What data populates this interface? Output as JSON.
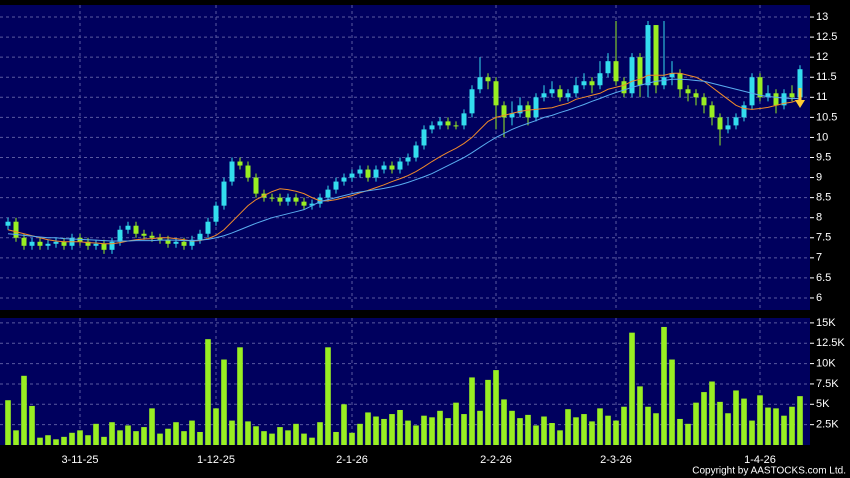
{
  "chart_data": [
    {
      "type": "candlestick",
      "categories": [
        null,
        null,
        null,
        null,
        null,
        null,
        null,
        null,
        null,
        "3-11-25",
        null,
        null,
        null,
        null,
        null,
        null,
        null,
        null,
        null,
        null,
        null,
        null,
        null,
        null,
        null,
        null,
        "1-12-25",
        null,
        null,
        null,
        null,
        null,
        null,
        null,
        null,
        null,
        null,
        null,
        null,
        null,
        null,
        null,
        null,
        "2-1-26",
        null,
        null,
        null,
        null,
        null,
        null,
        null,
        null,
        null,
        null,
        null,
        null,
        null,
        null,
        null,
        null,
        null,
        "2-2-26",
        null,
        null,
        null,
        null,
        null,
        null,
        null,
        null,
        null,
        null,
        null,
        null,
        null,
        null,
        "2-3-26",
        null,
        null,
        null,
        null,
        null,
        null,
        null,
        null,
        null,
        null,
        null,
        null,
        null,
        null,
        null,
        null,
        null,
        "1-4-26",
        null,
        null,
        null,
        null,
        null
      ],
      "open": [
        7.8,
        7.9,
        7.5,
        7.3,
        7.4,
        7.3,
        7.35,
        7.4,
        7.3,
        7.5,
        7.4,
        7.3,
        7.35,
        7.2,
        7.4,
        7.7,
        7.8,
        7.6,
        7.55,
        7.5,
        7.45,
        7.35,
        7.4,
        7.3,
        7.45,
        7.6,
        7.9,
        8.3,
        8.9,
        9.4,
        9.3,
        9.0,
        8.6,
        8.5,
        8.5,
        8.4,
        8.5,
        8.4,
        8.3,
        8.35,
        8.5,
        8.7,
        8.9,
        9.0,
        9.1,
        9.2,
        9.0,
        9.2,
        9.3,
        9.2,
        9.4,
        9.5,
        9.8,
        10.2,
        10.3,
        10.4,
        10.3,
        10.3,
        10.6,
        11.2,
        11.5,
        11.4,
        10.8,
        10.5,
        10.6,
        10.8,
        10.5,
        11.0,
        11.1,
        11.2,
        11.0,
        11.1,
        11.3,
        11.4,
        11.3,
        11.6,
        11.9,
        11.4,
        11.1,
        12.0,
        11.3,
        12.8,
        11.3,
        11.5,
        11.6,
        11.2,
        11.1,
        11.0,
        10.8,
        10.5,
        10.2,
        10.3,
        10.5,
        10.8,
        11.5,
        11.0,
        11.1,
        10.8,
        11.1,
        11.0
      ],
      "high": [
        8.0,
        8.0,
        7.6,
        7.5,
        7.5,
        7.45,
        7.5,
        7.5,
        7.6,
        7.6,
        7.5,
        7.45,
        7.45,
        7.5,
        7.8,
        7.9,
        7.9,
        7.7,
        7.65,
        7.6,
        7.55,
        7.5,
        7.5,
        7.55,
        7.7,
        8.0,
        8.4,
        9.0,
        9.5,
        9.5,
        9.4,
        9.1,
        8.7,
        8.6,
        8.6,
        8.6,
        8.6,
        8.5,
        8.45,
        8.6,
        8.8,
        9.0,
        9.1,
        9.2,
        9.3,
        9.3,
        9.3,
        9.4,
        9.4,
        9.5,
        9.6,
        9.9,
        10.3,
        10.4,
        10.5,
        10.5,
        10.4,
        10.7,
        11.3,
        12.0,
        11.6,
        11.5,
        10.9,
        10.9,
        11.0,
        10.9,
        11.1,
        11.3,
        11.4,
        11.3,
        11.2,
        11.5,
        11.6,
        11.5,
        11.9,
        12.1,
        12.9,
        11.5,
        12.1,
        12.1,
        12.9,
        12.8,
        12.9,
        11.9,
        11.7,
        11.3,
        11.2,
        11.1,
        10.9,
        10.6,
        10.5,
        10.6,
        10.9,
        11.6,
        11.6,
        11.3,
        11.2,
        11.2,
        11.3,
        11.8
      ],
      "low": [
        7.7,
        7.4,
        7.2,
        7.2,
        7.2,
        7.2,
        7.25,
        7.2,
        7.2,
        7.3,
        7.2,
        7.2,
        7.1,
        7.1,
        7.3,
        7.6,
        7.5,
        7.45,
        7.4,
        7.35,
        7.25,
        7.25,
        7.2,
        7.2,
        7.35,
        7.5,
        7.8,
        8.2,
        8.8,
        9.2,
        8.9,
        8.5,
        8.4,
        8.4,
        8.3,
        8.3,
        8.3,
        8.2,
        8.2,
        8.25,
        8.4,
        8.6,
        8.8,
        8.9,
        9.0,
        8.9,
        8.9,
        9.1,
        9.1,
        9.1,
        9.3,
        9.4,
        9.7,
        10.1,
        10.2,
        10.2,
        10.2,
        10.2,
        10.5,
        11.1,
        11.2,
        10.2,
        10.0,
        10.3,
        10.5,
        10.3,
        10.4,
        10.9,
        11.0,
        10.9,
        10.9,
        11.0,
        11.2,
        11.1,
        11.2,
        11.5,
        11.3,
        11.0,
        11.0,
        11.0,
        11.0,
        11.1,
        11.2,
        11.3,
        11.0,
        10.9,
        10.8,
        10.6,
        10.3,
        9.8,
        10.1,
        10.2,
        10.4,
        10.7,
        10.9,
        10.9,
        10.6,
        10.7,
        10.9,
        10.9
      ],
      "close": [
        7.9,
        7.5,
        7.3,
        7.4,
        7.3,
        7.35,
        7.4,
        7.3,
        7.5,
        7.4,
        7.3,
        7.35,
        7.2,
        7.4,
        7.7,
        7.8,
        7.6,
        7.55,
        7.5,
        7.45,
        7.35,
        7.4,
        7.3,
        7.45,
        7.6,
        7.9,
        8.3,
        8.9,
        9.4,
        9.3,
        9.0,
        8.6,
        8.5,
        8.5,
        8.4,
        8.5,
        8.4,
        8.3,
        8.35,
        8.5,
        8.7,
        8.9,
        9.0,
        9.1,
        9.2,
        9.0,
        9.2,
        9.3,
        9.2,
        9.4,
        9.5,
        9.8,
        10.2,
        10.3,
        10.4,
        10.3,
        10.3,
        10.6,
        11.2,
        11.5,
        11.4,
        10.8,
        10.5,
        10.6,
        10.8,
        10.5,
        11.0,
        11.1,
        11.2,
        11.0,
        11.1,
        11.3,
        11.4,
        11.3,
        11.6,
        11.9,
        11.4,
        11.1,
        12.0,
        11.3,
        12.8,
        11.3,
        11.5,
        11.6,
        11.2,
        11.1,
        11.0,
        10.8,
        10.5,
        10.2,
        10.3,
        10.5,
        10.8,
        11.5,
        11.0,
        11.1,
        10.8,
        11.1,
        11.0,
        11.7
      ],
      "up_color": "#33ddee",
      "down_color": "#99ee22",
      "series": [
        {
          "color": "#f08a2a",
          "values": [
            7.7,
            7.65,
            7.6,
            7.55,
            7.5,
            7.45,
            7.42,
            7.4,
            7.4,
            7.4,
            7.38,
            7.37,
            7.35,
            7.35,
            7.38,
            7.42,
            7.45,
            7.47,
            7.48,
            7.5,
            7.5,
            7.48,
            7.45,
            7.42,
            7.43,
            7.48,
            7.56,
            7.7,
            7.9,
            8.1,
            8.3,
            8.45,
            8.55,
            8.65,
            8.72,
            8.7,
            8.66,
            8.6,
            8.5,
            8.42,
            8.42,
            8.45,
            8.5,
            8.55,
            8.62,
            8.68,
            8.75,
            8.82,
            8.9,
            8.97,
            9.05,
            9.15,
            9.27,
            9.4,
            9.52,
            9.63,
            9.73,
            9.85,
            10.0,
            10.2,
            10.4,
            10.5,
            10.55,
            10.6,
            10.65,
            10.68,
            10.7,
            10.72,
            10.74,
            10.8,
            10.85,
            10.95,
            11.0,
            11.05,
            11.1,
            11.2,
            11.25,
            11.3,
            11.4,
            11.45,
            11.55,
            11.55,
            11.55,
            11.6,
            11.6,
            11.55,
            11.5,
            11.4,
            11.25,
            11.1,
            10.95,
            10.8,
            10.72,
            10.7,
            10.72,
            10.75,
            10.8,
            10.85,
            10.88,
            10.95
          ]
        },
        {
          "color": "#5aaef0",
          "values": [
            7.6,
            7.58,
            7.56,
            7.54,
            7.52,
            7.5,
            7.5,
            7.48,
            7.47,
            7.46,
            7.45,
            7.44,
            7.43,
            7.42,
            7.42,
            7.42,
            7.43,
            7.43,
            7.43,
            7.44,
            7.44,
            7.44,
            7.43,
            7.43,
            7.44,
            7.46,
            7.5,
            7.55,
            7.62,
            7.7,
            7.78,
            7.86,
            7.93,
            8.0,
            8.05,
            8.1,
            8.15,
            8.2,
            8.3,
            8.4,
            8.45,
            8.5,
            8.55,
            8.6,
            8.64,
            8.67,
            8.7,
            8.73,
            8.77,
            8.82,
            8.88,
            8.95,
            9.02,
            9.1,
            9.2,
            9.3,
            9.4,
            9.5,
            9.62,
            9.75,
            9.88,
            10.0,
            10.1,
            10.2,
            10.28,
            10.35,
            10.42,
            10.5,
            10.55,
            10.62,
            10.68,
            10.75,
            10.82,
            10.9,
            10.97,
            11.05,
            11.12,
            11.18,
            11.25,
            11.3,
            11.35,
            11.4,
            11.42,
            11.45,
            11.45,
            11.44,
            11.42,
            11.4,
            11.35,
            11.3,
            11.25,
            11.2,
            11.15,
            11.1,
            11.05,
            11.02,
            11.0,
            10.98,
            10.97,
            10.97
          ]
        }
      ],
      "ylim": [
        5.7,
        13.3
      ],
      "yticks": [
        6,
        6.5,
        7,
        7.5,
        8,
        8.5,
        9,
        9.5,
        10,
        10.5,
        11,
        11.5,
        12,
        12.5,
        13
      ],
      "grid": true
    },
    {
      "type": "bar",
      "values": [
        5500,
        1800,
        8500,
        4800,
        900,
        1200,
        700,
        1000,
        1500,
        1800,
        1200,
        2600,
        1000,
        2800,
        1800,
        2400,
        1700,
        2200,
        4500,
        1400,
        2000,
        2800,
        1700,
        3000,
        1600,
        13000,
        4500,
        10500,
        3000,
        12000,
        2900,
        2300,
        1700,
        1400,
        2200,
        1800,
        2600,
        1400,
        900,
        2800,
        12000,
        1600,
        5000,
        1500,
        2600,
        4000,
        3500,
        3200,
        3800,
        4300,
        3000,
        2400,
        3600,
        3400,
        4200,
        3300,
        5200,
        3800,
        8300,
        4200,
        8000,
        9200,
        5600,
        4200,
        3300,
        3700,
        2400,
        3500,
        2700,
        1800,
        4400,
        3400,
        3800,
        2900,
        4500,
        3600,
        3000,
        4700,
        13800,
        7200,
        4700,
        3900,
        14500,
        10500,
        3200,
        2600,
        5200,
        6500,
        7800,
        5300,
        3900,
        6700,
        5700,
        3000,
        6100,
        4600,
        4500,
        3600,
        4700,
        6000
      ],
      "color": "#99ee22",
      "ylim": [
        0,
        15600
      ],
      "yticks": [
        {
          "value": 2500,
          "label": "2.5K"
        },
        {
          "value": 5000,
          "label": "5K"
        },
        {
          "value": 7500,
          "label": "7.5K"
        },
        {
          "value": 10000,
          "label": "10K"
        },
        {
          "value": 12500,
          "label": "12.5K"
        },
        {
          "value": 15000,
          "label": "15K"
        }
      ],
      "grid": true
    }
  ],
  "footer": "Copyright by AASTOCKS.com Ltd."
}
